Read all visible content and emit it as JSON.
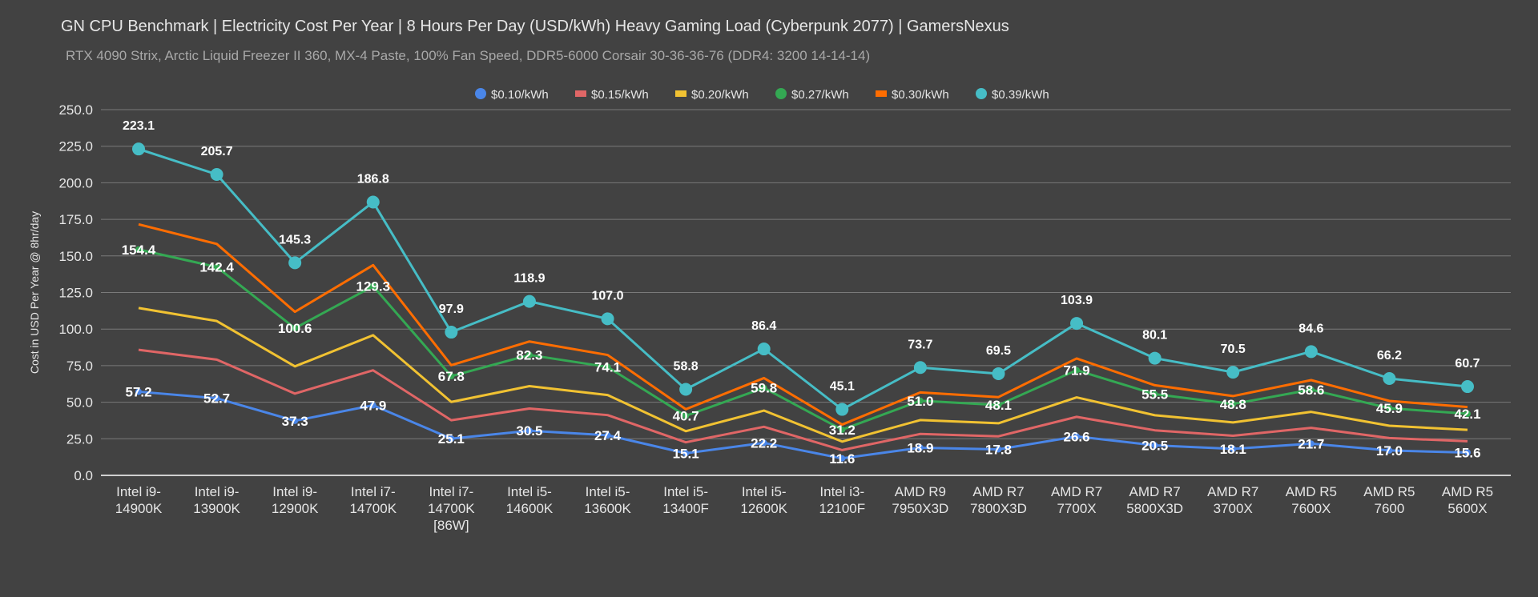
{
  "chart_data": {
    "type": "line",
    "title": "GN CPU Benchmark | Electricity Cost Per Year | 8 Hours Per Day (USD/kWh) Heavy Gaming Load (Cyberpunk 2077) | GamersNexus",
    "subtitle": "RTX 4090 Strix, Arctic Liquid Freezer II 360, MX-4 Paste, 100% Fan Speed, DDR5-6000 Corsair 30-36-36-76 (DDR4: 3200 14-14-14)",
    "ylabel": "Cost in USD Per Year @ 8hr/day",
    "xlabel": "",
    "ylim": [
      0,
      250
    ],
    "yticks": [
      "0.0",
      "25.0",
      "50.0",
      "75.0",
      "100.0",
      "125.0",
      "150.0",
      "175.0",
      "200.0",
      "225.0",
      "250.0"
    ],
    "grid": true,
    "legend": "top-center",
    "categories": [
      [
        "Intel i9-",
        "14900K"
      ],
      [
        "Intel i9-",
        "13900K"
      ],
      [
        "Intel i9-",
        "12900K"
      ],
      [
        "Intel i7-",
        "14700K"
      ],
      [
        "Intel i7-",
        "14700K",
        "[86W]"
      ],
      [
        "Intel i5-",
        "14600K"
      ],
      [
        "Intel i5-",
        "13600K"
      ],
      [
        "Intel i5-",
        "13400F"
      ],
      [
        "Intel i5-",
        "12600K"
      ],
      [
        "Intel i3-",
        "12100F"
      ],
      [
        "AMD R9",
        "7950X3D"
      ],
      [
        "AMD R7",
        "7800X3D"
      ],
      [
        "AMD R7",
        "7700X"
      ],
      [
        "AMD R7",
        "5800X3D"
      ],
      [
        "AMD R7",
        "3700X"
      ],
      [
        "AMD R5",
        "7600X"
      ],
      [
        "AMD R5",
        "7600"
      ],
      [
        "AMD R5",
        "5600X"
      ]
    ],
    "series": [
      {
        "name": "$0.10/kWh",
        "color": "#4a86e8",
        "marker": "circle",
        "labels": true,
        "values": [
          57.2,
          52.7,
          37.3,
          47.9,
          25.1,
          30.5,
          27.4,
          15.1,
          22.2,
          11.6,
          18.9,
          17.8,
          26.6,
          20.5,
          18.1,
          21.7,
          17.0,
          15.6
        ]
      },
      {
        "name": "$0.15/kWh",
        "color": "#e06666",
        "marker": "square",
        "labels": false,
        "values": [
          85.8,
          79.1,
          55.9,
          71.8,
          37.7,
          45.7,
          41.2,
          22.6,
          33.2,
          17.3,
          28.3,
          26.7,
          40.0,
          30.8,
          27.1,
          32.5,
          25.5,
          23.3
        ]
      },
      {
        "name": "$0.20/kWh",
        "color": "#f1c232",
        "marker": "square",
        "labels": false,
        "values": [
          114.4,
          105.5,
          74.5,
          95.8,
          50.2,
          61.0,
          54.9,
          30.2,
          44.3,
          23.1,
          37.8,
          35.6,
          53.3,
          41.1,
          36.2,
          43.4,
          33.9,
          31.1
        ]
      },
      {
        "name": "$0.27/kWh",
        "color": "#34a853",
        "marker": "circle",
        "labels": true,
        "values": [
          154.4,
          142.4,
          100.6,
          129.3,
          67.8,
          82.3,
          74.1,
          40.7,
          59.8,
          31.2,
          51.0,
          48.1,
          71.9,
          55.5,
          48.8,
          58.6,
          45.9,
          42.1
        ]
      },
      {
        "name": "$0.30/kWh",
        "color": "#ff6d01",
        "marker": "square",
        "labels": false,
        "values": [
          171.6,
          158.2,
          111.8,
          143.7,
          75.3,
          91.5,
          82.3,
          45.2,
          66.5,
          34.7,
          56.7,
          53.5,
          79.9,
          61.6,
          54.2,
          65.1,
          50.9,
          46.7
        ]
      },
      {
        "name": "$0.39/kWh",
        "color": "#46bdc6",
        "marker": "circle",
        "labels": true,
        "values": [
          223.1,
          205.7,
          145.3,
          186.8,
          97.9,
          118.9,
          107.0,
          58.8,
          86.4,
          45.1,
          73.7,
          69.5,
          103.9,
          80.1,
          70.5,
          84.6,
          66.2,
          60.7
        ]
      }
    ]
  }
}
